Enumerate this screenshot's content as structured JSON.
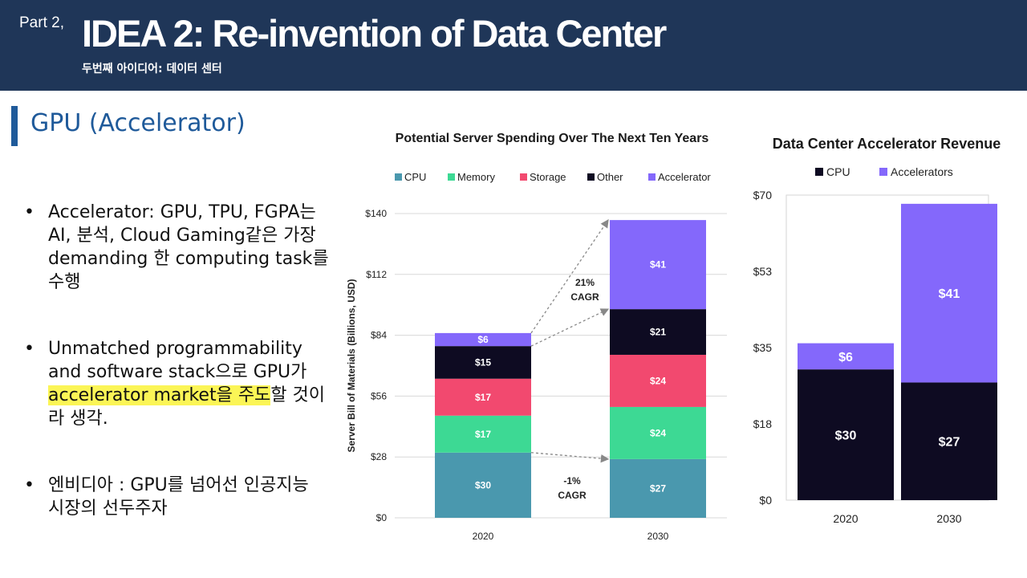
{
  "header": {
    "part": "Part 2,",
    "title": "IDEA 2:  Re-invention of Data Center",
    "subtitle": "두번째 아이디어: 데이터 센터"
  },
  "section": {
    "title": "GPU (Accelerator)"
  },
  "bullets": {
    "b1": "Accelerator: GPU, TPU, FGPA는 AI, 분석, Cloud Gaming같은 가장 demanding 한 computing task를 수행",
    "b2_pre": "Unmatched programmability and software stack으로 GPU가 ",
    "b2_highlight": "accelerator market을 주도",
    "b2_post": "할 것이라 생각.",
    "b3": "엔비디아 : GPU를 넘어선 인공지능 시장의 선두주자"
  },
  "colors": {
    "header_bg": "#1f3658",
    "accent": "#1f5a9a",
    "highlight": "#fbf556",
    "cpu": "#4a98ae",
    "memory": "#3dd994",
    "storage": "#f2496f",
    "other": "#0e0b22",
    "accelerator": "#8468fb"
  },
  "chart_data": [
    {
      "type": "bar",
      "stacked": true,
      "title": "Potential Server Spending Over The Next Ten Years",
      "ylabel": "Server Bill of Materials (Billions, USD)",
      "categories": [
        "2020",
        "2030"
      ],
      "ylim": [
        0,
        140
      ],
      "yticks": [
        "$0",
        "$28",
        "$56",
        "$84",
        "$112",
        "$140"
      ],
      "ytick_values": [
        0,
        28,
        56,
        84,
        112,
        140
      ],
      "grid": true,
      "legend": "top",
      "series": [
        {
          "name": "CPU",
          "color": "#4a98ae",
          "values": [
            30,
            27
          ],
          "labels": [
            "$30",
            "$27"
          ]
        },
        {
          "name": "Memory",
          "color": "#3dd994",
          "values": [
            17,
            24
          ],
          "labels": [
            "$17",
            "$24"
          ]
        },
        {
          "name": "Storage",
          "color": "#f2496f",
          "values": [
            17,
            24
          ],
          "labels": [
            "$17",
            "$24"
          ]
        },
        {
          "name": "Other",
          "color": "#0e0b22",
          "values": [
            15,
            21
          ],
          "labels": [
            "$15",
            "$21"
          ]
        },
        {
          "name": "Accelerator",
          "color": "#8468fb",
          "values": [
            6,
            41
          ],
          "labels": [
            "$6",
            "$41"
          ]
        }
      ],
      "annotations": [
        {
          "line1": "21%",
          "line2": "CAGR"
        },
        {
          "line1": "-1%",
          "line2": "CAGR"
        }
      ]
    },
    {
      "type": "bar",
      "stacked": true,
      "title": "Data Center Accelerator Revenue",
      "categories": [
        "2020",
        "2030"
      ],
      "ylim": [
        0,
        70
      ],
      "yticks": [
        "$0",
        "$18",
        "$35",
        "$53",
        "$70"
      ],
      "ytick_values": [
        0,
        17.5,
        35,
        52.5,
        70
      ],
      "grid": false,
      "legend": "top",
      "series": [
        {
          "name": "CPU",
          "color": "#0e0b22",
          "values": [
            30,
            27
          ],
          "labels": [
            "$30",
            "$27"
          ]
        },
        {
          "name": "Accelerators",
          "color": "#8468fb",
          "values": [
            6,
            41
          ],
          "labels": [
            "$6",
            "$41"
          ]
        }
      ]
    }
  ]
}
